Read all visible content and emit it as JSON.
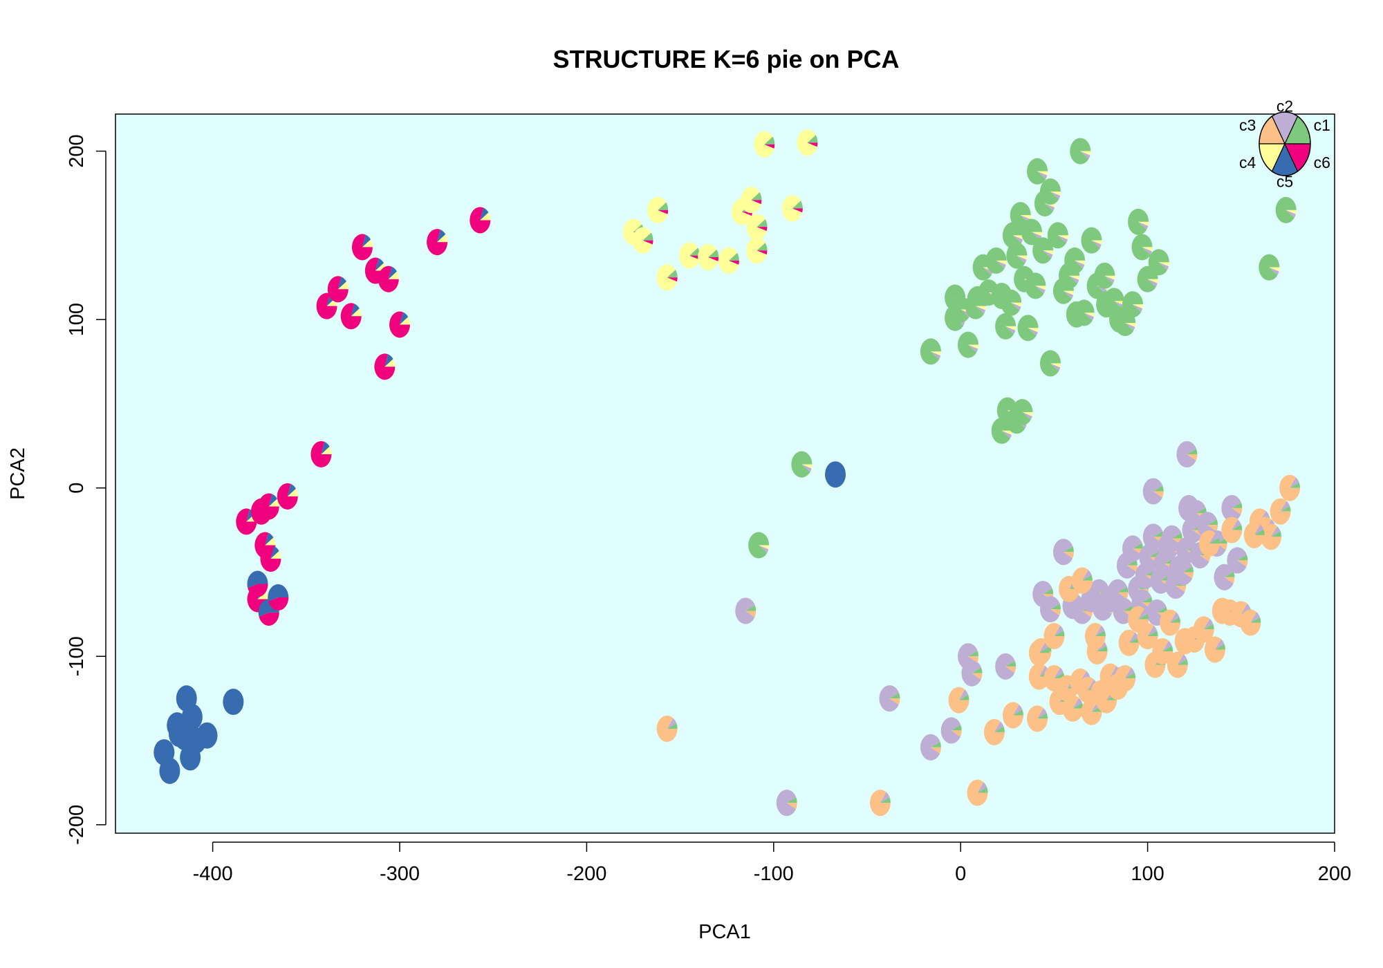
{
  "chart_data": {
    "type": "scatter",
    "subtype": "pie-scatter",
    "title": "STRUCTURE K=6 pie on PCA",
    "xlabel": "PCA1",
    "ylabel": "PCA2",
    "xlim": [
      -452,
      200
    ],
    "ylim": [
      -205,
      222
    ],
    "xticks": [
      -400,
      -300,
      -200,
      -100,
      0,
      100,
      200
    ],
    "yticks": [
      -200,
      -100,
      0,
      100,
      200
    ],
    "background": "#dffefd",
    "grid": false,
    "legend": {
      "position": "top-right",
      "clusters": [
        {
          "name": "c1",
          "color": "#7fc97f"
        },
        {
          "name": "c2",
          "color": "#beaed4"
        },
        {
          "name": "c3",
          "color": "#fdc086"
        },
        {
          "name": "c4",
          "color": "#ffff99"
        },
        {
          "name": "c5",
          "color": "#386cb0"
        },
        {
          "name": "c6",
          "color": "#f0027f"
        }
      ]
    },
    "groups": [
      {
        "cluster": "c5",
        "mix": {
          "c5": 1.0
        },
        "points": [
          [
            -426,
            -157
          ],
          [
            -423,
            -168
          ],
          [
            -419,
            -141
          ],
          [
            -418,
            -146
          ],
          [
            -415,
            -148
          ],
          [
            -414,
            -125
          ],
          [
            -412,
            -160
          ],
          [
            -411,
            -136
          ],
          [
            -409,
            -150
          ],
          [
            -403,
            -147
          ],
          [
            -389,
            -127
          ],
          [
            -67,
            8
          ]
        ]
      },
      {
        "cluster": "c6",
        "mix": {
          "c6": 0.8,
          "c5": 0.1,
          "c4": 0.1
        },
        "points": [
          [
            -382,
            -20
          ],
          [
            -376,
            -66
          ],
          [
            -374,
            -14
          ],
          [
            -372,
            -34
          ],
          [
            -370,
            -11
          ],
          [
            -369,
            -42
          ],
          [
            -360,
            -5
          ],
          [
            -342,
            20
          ],
          [
            -339,
            108
          ],
          [
            -333,
            118
          ],
          [
            -326,
            102
          ],
          [
            -320,
            143
          ],
          [
            -313,
            129
          ],
          [
            -306,
            124
          ],
          [
            -308,
            72
          ],
          [
            -300,
            97
          ],
          [
            -280,
            146
          ],
          [
            -257,
            159
          ]
        ]
      },
      {
        "cluster": "c5",
        "mix": {
          "c5": 0.55,
          "c6": 0.45
        },
        "points": [
          [
            -376,
            -57
          ],
          [
            -370,
            -74
          ],
          [
            -365,
            -65
          ]
        ]
      },
      {
        "cluster": "c4",
        "mix": {
          "c4": 0.85,
          "c6": 0.05,
          "c1": 0.1
        },
        "points": [
          [
            -175,
            152
          ],
          [
            -170,
            147
          ],
          [
            -162,
            165
          ],
          [
            -157,
            125
          ],
          [
            -145,
            138
          ],
          [
            -135,
            137
          ],
          [
            -124,
            135
          ],
          [
            -117,
            164
          ],
          [
            -112,
            171
          ],
          [
            -109,
            155
          ],
          [
            -109,
            141
          ],
          [
            -105,
            204
          ],
          [
            -90,
            166
          ],
          [
            -82,
            205
          ]
        ]
      },
      {
        "cluster": "c1",
        "mix": {
          "c1": 0.9,
          "c4": 0.05,
          "c2": 0.05
        },
        "points": [
          [
            -16,
            81
          ],
          [
            -3,
            101
          ],
          [
            -3,
            113
          ],
          [
            0,
            106
          ],
          [
            4,
            85
          ],
          [
            9,
            112
          ],
          [
            12,
            131
          ],
          [
            15,
            116
          ],
          [
            19,
            135
          ],
          [
            22,
            114
          ],
          [
            24,
            96
          ],
          [
            27,
            110
          ],
          [
            28,
            150
          ],
          [
            30,
            138
          ],
          [
            32,
            162
          ],
          [
            34,
            124
          ],
          [
            36,
            95
          ],
          [
            40,
            120
          ],
          [
            41,
            188
          ],
          [
            45,
            169
          ],
          [
            48,
            176
          ],
          [
            52,
            150
          ],
          [
            55,
            117
          ],
          [
            58,
            126
          ],
          [
            61,
            135
          ],
          [
            62,
            103
          ],
          [
            66,
            104
          ],
          [
            70,
            147
          ],
          [
            73,
            120
          ],
          [
            77,
            126
          ],
          [
            78,
            109
          ],
          [
            82,
            111
          ],
          [
            85,
            100
          ],
          [
            88,
            98
          ],
          [
            92,
            109
          ],
          [
            95,
            158
          ],
          [
            97,
            143
          ],
          [
            100,
            124
          ],
          [
            106,
            134
          ],
          [
            64,
            200
          ],
          [
            174,
            165
          ],
          [
            165,
            131
          ],
          [
            22,
            34
          ],
          [
            25,
            46
          ],
          [
            30,
            40
          ],
          [
            33,
            45
          ],
          [
            48,
            74
          ],
          [
            38,
            152
          ],
          [
            44,
            141
          ],
          [
            8,
            108
          ],
          [
            -85,
            14
          ],
          [
            -108,
            -34
          ]
        ]
      },
      {
        "cluster": "c2",
        "mix": {
          "c2": 0.85,
          "c1": 0.07,
          "c3": 0.08
        },
        "points": [
          [
            -115,
            -73
          ],
          [
            -93,
            -187
          ],
          [
            -38,
            -125
          ],
          [
            -16,
            -154
          ],
          [
            6,
            -110
          ],
          [
            -5,
            -144
          ],
          [
            4,
            -100
          ],
          [
            24,
            -106
          ],
          [
            44,
            -63
          ],
          [
            48,
            -72
          ],
          [
            55,
            -38
          ],
          [
            60,
            -70
          ],
          [
            65,
            -73
          ],
          [
            70,
            -66
          ],
          [
            74,
            -62
          ],
          [
            76,
            -71
          ],
          [
            80,
            -66
          ],
          [
            84,
            -62
          ],
          [
            87,
            -73
          ],
          [
            89,
            -46
          ],
          [
            92,
            -36
          ],
          [
            95,
            -60
          ],
          [
            97,
            -68
          ],
          [
            99,
            -52
          ],
          [
            101,
            -41
          ],
          [
            103,
            -29
          ],
          [
            105,
            -74
          ],
          [
            107,
            -55
          ],
          [
            109,
            -45
          ],
          [
            111,
            -35
          ],
          [
            113,
            -30
          ],
          [
            115,
            -58
          ],
          [
            117,
            -48
          ],
          [
            119,
            -50
          ],
          [
            121,
            -37
          ],
          [
            122,
            -12
          ],
          [
            124,
            -25
          ],
          [
            126,
            -15
          ],
          [
            128,
            -40
          ],
          [
            132,
            -22
          ],
          [
            137,
            -33
          ],
          [
            141,
            -53
          ],
          [
            145,
            -12
          ],
          [
            148,
            -43
          ],
          [
            121,
            20
          ],
          [
            103,
            -2
          ],
          [
            86,
            -114
          ]
        ]
      },
      {
        "cluster": "c3",
        "mix": {
          "c3": 0.85,
          "c2": 0.08,
          "c1": 0.07
        },
        "points": [
          [
            -157,
            -143
          ],
          [
            -43,
            -187
          ],
          [
            9,
            -181
          ],
          [
            -1,
            -126
          ],
          [
            18,
            -145
          ],
          [
            28,
            -135
          ],
          [
            41,
            -137
          ],
          [
            42,
            -112
          ],
          [
            43,
            -97
          ],
          [
            50,
            -113
          ],
          [
            53,
            -127
          ],
          [
            57,
            -119
          ],
          [
            60,
            -131
          ],
          [
            64,
            -115
          ],
          [
            68,
            -120
          ],
          [
            70,
            -133
          ],
          [
            73,
            -97
          ],
          [
            75,
            -122
          ],
          [
            78,
            -126
          ],
          [
            80,
            -112
          ],
          [
            84,
            -118
          ],
          [
            88,
            -113
          ],
          [
            90,
            -92
          ],
          [
            95,
            -78
          ],
          [
            100,
            -88
          ],
          [
            104,
            -105
          ],
          [
            108,
            -97
          ],
          [
            112,
            -80
          ],
          [
            116,
            -105
          ],
          [
            120,
            -91
          ],
          [
            125,
            -90
          ],
          [
            130,
            -84
          ],
          [
            136,
            -96
          ],
          [
            140,
            -73
          ],
          [
            144,
            -74
          ],
          [
            150,
            -75
          ],
          [
            155,
            -80
          ],
          [
            160,
            -20
          ],
          [
            163,
            -25
          ],
          [
            166,
            -29
          ],
          [
            171,
            -14
          ],
          [
            176,
            0
          ],
          [
            42,
            -98
          ],
          [
            50,
            -88
          ],
          [
            58,
            -60
          ],
          [
            65,
            -55
          ],
          [
            72,
            -88
          ],
          [
            133,
            -33
          ],
          [
            145,
            -25
          ],
          [
            157,
            -28
          ]
        ]
      }
    ]
  }
}
